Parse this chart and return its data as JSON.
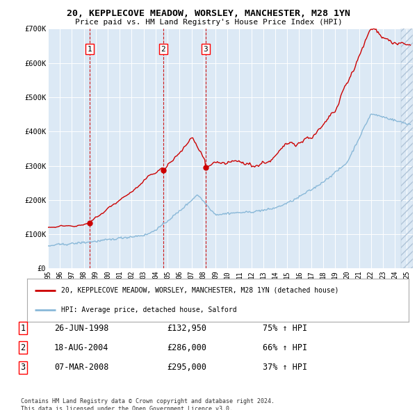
{
  "title": "20, KEPPLECOVE MEADOW, WORSLEY, MANCHESTER, M28 1YN",
  "subtitle": "Price paid vs. HM Land Registry's House Price Index (HPI)",
  "background_color": "#ffffff",
  "plot_bg_color": "#dce9f5",
  "transaction_color": "#cc0000",
  "hpi_color": "#89b8d8",
  "ylabel": "",
  "xlabel": "",
  "ylim": [
    0,
    700000
  ],
  "yticks": [
    0,
    100000,
    200000,
    300000,
    400000,
    500000,
    600000,
    700000
  ],
  "ytick_labels": [
    "£0",
    "£100K",
    "£200K",
    "£300K",
    "£400K",
    "£500K",
    "£600K",
    "£700K"
  ],
  "transactions": [
    {
      "date": "1998-06-26",
      "price": 132950,
      "label": "1",
      "x_year": 1998.49
    },
    {
      "date": "2004-08-18",
      "price": 286000,
      "label": "2",
      "x_year": 2004.63
    },
    {
      "date": "2008-03-07",
      "price": 295000,
      "label": "3",
      "x_year": 2008.18
    }
  ],
  "legend_entries": [
    "20, KEPPLECOVE MEADOW, WORSLEY, MANCHESTER, M28 1YN (detached house)",
    "HPI: Average price, detached house, Salford"
  ],
  "table_rows": [
    [
      "1",
      "26-JUN-1998",
      "£132,950",
      "75% ↑ HPI"
    ],
    [
      "2",
      "18-AUG-2004",
      "£286,000",
      "66% ↑ HPI"
    ],
    [
      "3",
      "07-MAR-2008",
      "£295,000",
      "37% ↑ HPI"
    ]
  ],
  "footer_text": "Contains HM Land Registry data © Crown copyright and database right 2024.\nThis data is licensed under the Open Government Licence v3.0.",
  "xmin": 1995.0,
  "xmax": 2025.5
}
